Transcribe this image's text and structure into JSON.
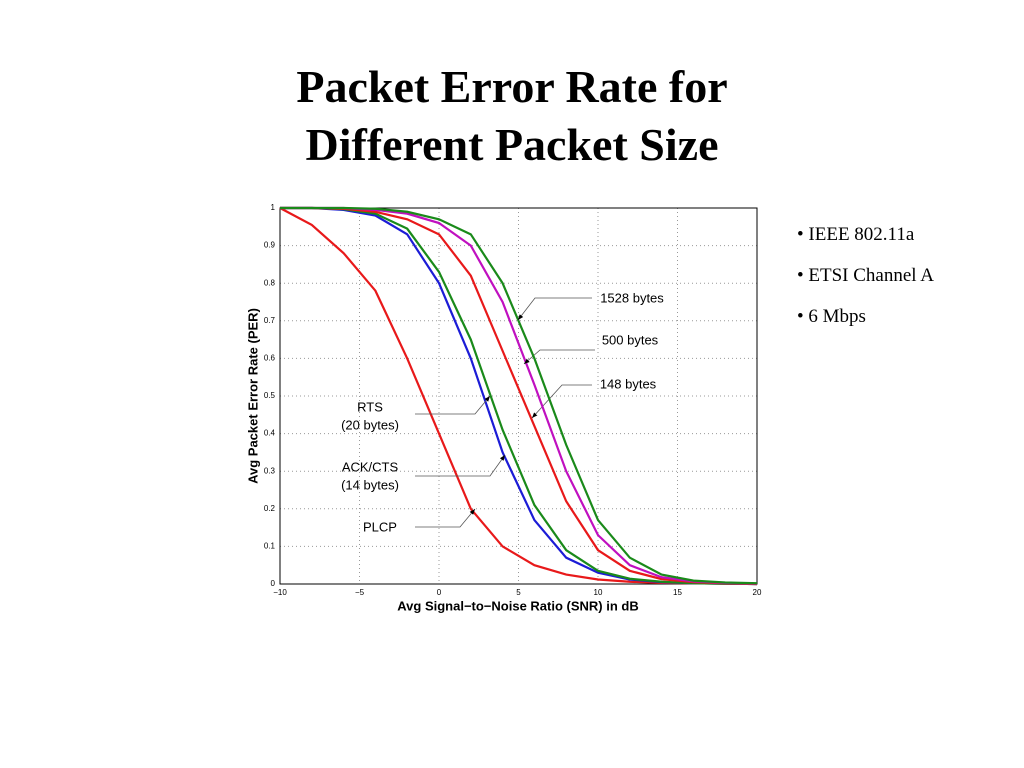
{
  "title": [
    "Packet Error Rate for",
    "Different Packet Size"
  ],
  "bullets": [
    "IEEE 802.11a",
    "ETSI Channel A",
    "6 Mbps"
  ],
  "chart_data": {
    "type": "line",
    "xlabel": "Avg Signal−to−Noise Ratio (SNR) in dB",
    "ylabel": "Avg Packet Error Rate (PER)",
    "x": [
      -10,
      -8,
      -6,
      -4,
      -2,
      0,
      2,
      4,
      6,
      8,
      10,
      12,
      14,
      16,
      18,
      20
    ],
    "xlim": [
      -10,
      20
    ],
    "xticks": [
      {
        "value": -10,
        "label": "−10"
      },
      {
        "value": -5,
        "label": "−5"
      },
      0,
      5,
      10,
      15,
      20
    ],
    "ylim": [
      0,
      1
    ],
    "yticks": [
      0,
      0.1,
      0.2,
      0.3,
      0.4,
      0.5,
      0.6,
      0.7,
      0.8,
      0.9,
      1
    ],
    "grid": true,
    "series": [
      {
        "name": [
          "PLCP"
        ],
        "color": "#e8191a",
        "values": [
          1,
          0.955,
          0.88,
          0.78,
          0.6,
          0.4,
          0.2,
          0.1,
          0.05,
          0.025,
          0.012,
          0.006,
          0.003,
          0.002,
          0.001,
          0
        ]
      },
      {
        "name": [
          "ACK/CTS",
          "(14 bytes)"
        ],
        "color": "#1c1cd6",
        "values": [
          1,
          1,
          0.995,
          0.98,
          0.93,
          0.8,
          0.6,
          0.35,
          0.17,
          0.07,
          0.03,
          0.012,
          0.005,
          0.002,
          0.001,
          0
        ]
      },
      {
        "name": [
          "RTS",
          "(20 bytes)"
        ],
        "color": "#1a8a1a",
        "values": [
          1,
          1,
          0.997,
          0.985,
          0.945,
          0.83,
          0.65,
          0.41,
          0.21,
          0.09,
          0.035,
          0.014,
          0.006,
          0.002,
          0.001,
          0
        ]
      },
      {
        "name": [
          "148 bytes"
        ],
        "color": "#e8191a",
        "values": [
          1,
          1,
          0.998,
          0.99,
          0.97,
          0.93,
          0.82,
          0.62,
          0.42,
          0.22,
          0.09,
          0.035,
          0.013,
          0.005,
          0.002,
          0
        ]
      },
      {
        "name": [
          "500 bytes"
        ],
        "color": "#c010c0",
        "values": [
          1,
          1,
          1,
          0.995,
          0.985,
          0.96,
          0.9,
          0.75,
          0.53,
          0.3,
          0.13,
          0.05,
          0.018,
          0.007,
          0.003,
          0.001
        ]
      },
      {
        "name": [
          "1528 bytes"
        ],
        "color": "#1a8a1a",
        "values": [
          1,
          1,
          1,
          0.998,
          0.99,
          0.97,
          0.93,
          0.8,
          0.6,
          0.37,
          0.17,
          0.07,
          0.025,
          0.009,
          0.004,
          0.002
        ]
      }
    ]
  }
}
